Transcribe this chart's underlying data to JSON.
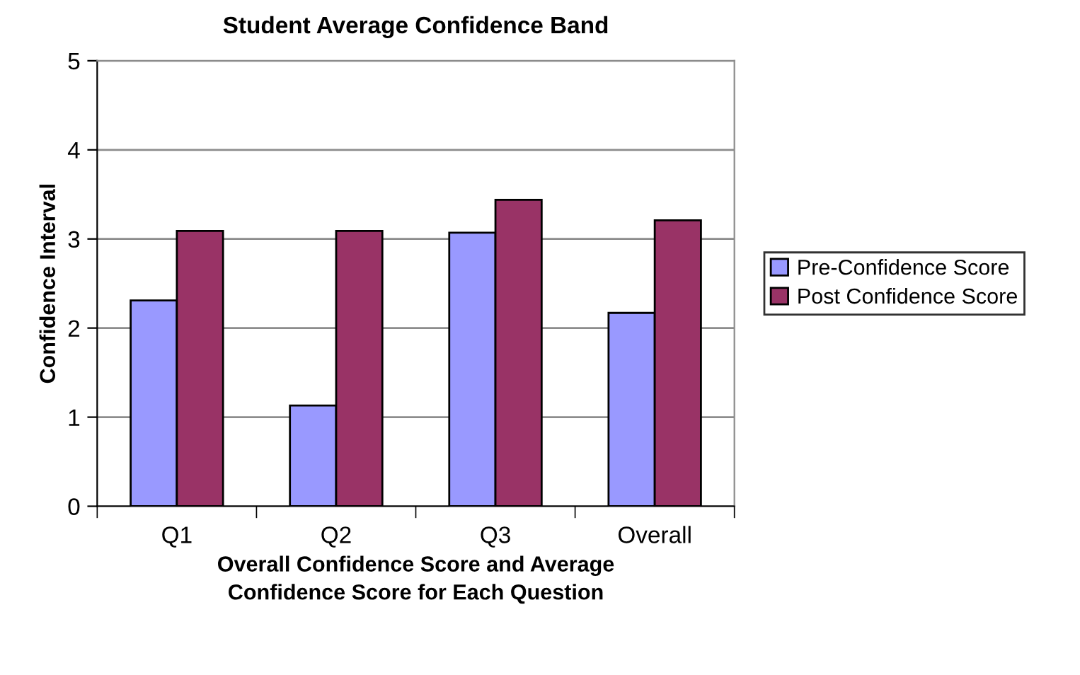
{
  "chart_data": {
    "type": "bar",
    "title": "Student Average Confidence Band",
    "xlabel": "Overall Confidence Score and Average\nConfidence Score for Each Question",
    "ylabel": "Confidence Interval",
    "categories": [
      "Q1",
      "Q2",
      "Q3",
      "Overall"
    ],
    "series": [
      {
        "name": "Pre-Confidence Score",
        "color": "#9999ff",
        "values": [
          2.31,
          1.13,
          3.07,
          2.17
        ]
      },
      {
        "name": "Post Confidence Score",
        "color": "#993366",
        "values": [
          3.09,
          3.09,
          3.44,
          3.21
        ]
      }
    ],
    "ylim": [
      0,
      5
    ],
    "yticks": [
      0,
      1,
      2,
      3,
      4,
      5
    ],
    "grid": "y",
    "legend": "right"
  }
}
